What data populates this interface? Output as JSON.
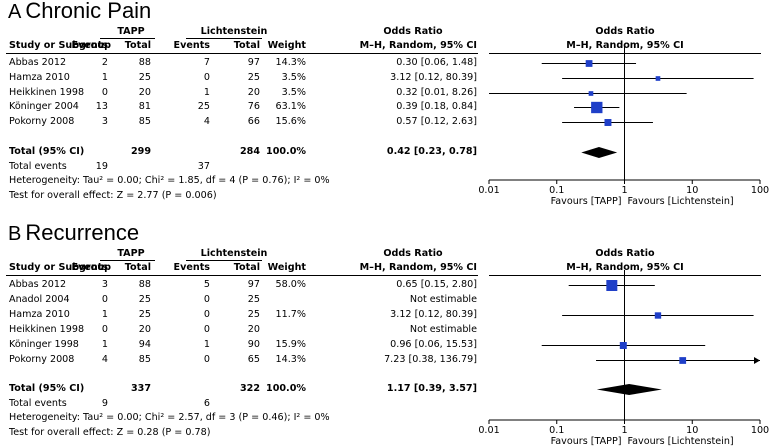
{
  "panels": [
    {
      "letter": "A",
      "title": "Chronic Pain",
      "group1": "TAPP",
      "group2": "Lichtenstein",
      "col_headers": {
        "study": "Study or Subgroup",
        "events1": "Events",
        "total1": "Total",
        "events2": "Events",
        "total2": "Total",
        "weight": "Weight",
        "or_title": "Odds Ratio",
        "or_method": "M–H, Random, 95% CI",
        "plot_title": "Odds Ratio",
        "plot_method": "M–H, Random, 95% CI"
      },
      "studies": [
        {
          "name": "Abbas 2012",
          "e1": "2",
          "t1": "88",
          "e2": "7",
          "t2": "97",
          "weight": "14.3%",
          "ci_text": "0.30 [0.06, 1.48]",
          "or": 0.3,
          "lo": 0.06,
          "hi": 1.48,
          "w": 14.3
        },
        {
          "name": "Hamza 2010",
          "e1": "1",
          "t1": "25",
          "e2": "0",
          "t2": "25",
          "weight": "3.5%",
          "ci_text": "3.12 [0.12, 80.39]",
          "or": 3.12,
          "lo": 0.12,
          "hi": 80.39,
          "w": 3.5
        },
        {
          "name": "Heikkinen 1998",
          "e1": "0",
          "t1": "20",
          "e2": "1",
          "t2": "20",
          "weight": "3.5%",
          "ci_text": "0.32 [0.01, 8.26]",
          "or": 0.32,
          "lo": 0.01,
          "hi": 8.26,
          "w": 3.5
        },
        {
          "name": "Köninger 2004",
          "e1": "13",
          "t1": "81",
          "e2": "25",
          "t2": "76",
          "weight": "63.1%",
          "ci_text": "0.39 [0.18, 0.84]",
          "or": 0.39,
          "lo": 0.18,
          "hi": 0.84,
          "w": 63.1
        },
        {
          "name": "Pokorny 2008",
          "e1": "3",
          "t1": "85",
          "e2": "4",
          "t2": "66",
          "weight": "15.6%",
          "ci_text": "0.57 [0.12, 2.63]",
          "or": 0.57,
          "lo": 0.12,
          "hi": 2.63,
          "w": 15.6
        }
      ],
      "total": {
        "label": "Total (95% CI)",
        "t1": "299",
        "t2": "284",
        "weight": "100.0%",
        "ci_text": "0.42 [0.23, 0.78]",
        "or": 0.42,
        "lo": 0.23,
        "hi": 0.78
      },
      "total_events": {
        "label": "Total events",
        "e1": "19",
        "e2": "37"
      },
      "heterogeneity": "Heterogeneity: Tau² = 0.00; Chi² = 1.85, df = 4 (P = 0.76); I² = 0%",
      "overall": "Test for overall effect: Z = 2.77 (P = 0.006)",
      "axis": {
        "ticks": [
          "0.01",
          "0.1",
          "1",
          "10",
          "100"
        ],
        "favours_left": "Favours [TAPP]",
        "favours_right": "Favours [Lichtenstein]"
      }
    },
    {
      "letter": "B",
      "title": "Recurrence",
      "group1": "TAPP",
      "group2": "Lichtenstein",
      "col_headers": {
        "study": "Study or Subgroup",
        "events1": "Events",
        "total1": "Total",
        "events2": "Events",
        "total2": "Total",
        "weight": "Weight",
        "or_title": "Odds Ratio",
        "or_method": "M–H, Random, 95% CI",
        "plot_title": "Odds Ratio",
        "plot_method": "M–H, Random, 95% CI"
      },
      "studies": [
        {
          "name": "Abbas 2012",
          "e1": "3",
          "t1": "88",
          "e2": "5",
          "t2": "97",
          "weight": "58.0%",
          "ci_text": "0.65 [0.15, 2.80]",
          "or": 0.65,
          "lo": 0.15,
          "hi": 2.8,
          "w": 58.0
        },
        {
          "name": "Anadol 2004",
          "e1": "0",
          "t1": "25",
          "e2": "0",
          "t2": "25",
          "weight": "",
          "ci_text": "Not estimable",
          "or": null,
          "lo": null,
          "hi": null,
          "w": 0
        },
        {
          "name": "Hamza 2010",
          "e1": "1",
          "t1": "25",
          "e2": "0",
          "t2": "25",
          "weight": "11.7%",
          "ci_text": "3.12 [0.12, 80.39]",
          "or": 3.12,
          "lo": 0.12,
          "hi": 80.39,
          "w": 11.7
        },
        {
          "name": "Heikkinen 1998",
          "e1": "0",
          "t1": "20",
          "e2": "0",
          "t2": "20",
          "weight": "",
          "ci_text": "Not estimable",
          "or": null,
          "lo": null,
          "hi": null,
          "w": 0
        },
        {
          "name": "Köninger 1998",
          "e1": "1",
          "t1": "94",
          "e2": "1",
          "t2": "90",
          "weight": "15.9%",
          "ci_text": "0.96 [0.06, 15.53]",
          "or": 0.96,
          "lo": 0.06,
          "hi": 15.53,
          "w": 15.9
        },
        {
          "name": "Pokorny 2008",
          "e1": "4",
          "t1": "85",
          "e2": "0",
          "t2": "65",
          "weight": "14.3%",
          "ci_text": "7.23 [0.38, 136.79]",
          "or": 7.23,
          "lo": 0.38,
          "hi": 136.79,
          "w": 14.3
        }
      ],
      "total": {
        "label": "Total (95% CI)",
        "t1": "337",
        "t2": "322",
        "weight": "100.0%",
        "ci_text": "1.17 [0.39, 3.57]",
        "or": 1.17,
        "lo": 0.39,
        "hi": 3.57
      },
      "total_events": {
        "label": "Total events",
        "e1": "9",
        "e2": "6"
      },
      "heterogeneity": "Heterogeneity: Tau² = 0.00; Chi² = 2.57, df = 3 (P = 0.46); I² = 0%",
      "overall": "Test for overall effect: Z = 0.28 (P = 0.78)",
      "axis": {
        "ticks": [
          "0.01",
          "0.1",
          "1",
          "10",
          "100"
        ],
        "favours_left": "Favours [TAPP]",
        "favours_right": "Favours [Lichtenstein]"
      }
    }
  ],
  "chart_data": [
    {
      "type": "forest",
      "title": "Chronic Pain",
      "scale": "log",
      "xlim": [
        0.01,
        100
      ],
      "xticks": [
        0.01,
        0.1,
        1,
        10,
        100
      ],
      "categories": [
        "Abbas 2012",
        "Hamza 2010",
        "Heikkinen 1998",
        "Köninger 2004",
        "Pokorny 2008",
        "Total (95% CI)"
      ],
      "odds_ratio": [
        0.3,
        3.12,
        0.32,
        0.39,
        0.57,
        0.42
      ],
      "ci_low": [
        0.06,
        0.12,
        0.01,
        0.18,
        0.12,
        0.23
      ],
      "ci_high": [
        1.48,
        80.39,
        8.26,
        0.84,
        2.63,
        0.78
      ],
      "weight": [
        14.3,
        3.5,
        3.5,
        63.1,
        15.6,
        100.0
      ]
    },
    {
      "type": "forest",
      "title": "Recurrence",
      "scale": "log",
      "xlim": [
        0.01,
        100
      ],
      "xticks": [
        0.01,
        0.1,
        1,
        10,
        100
      ],
      "categories": [
        "Abbas 2012",
        "Anadol 2004",
        "Hamza 2010",
        "Heikkinen 1998",
        "Köninger 1998",
        "Pokorny 2008",
        "Total (95% CI)"
      ],
      "odds_ratio": [
        0.65,
        null,
        3.12,
        null,
        0.96,
        7.23,
        1.17
      ],
      "ci_low": [
        0.15,
        null,
        0.12,
        null,
        0.06,
        0.38,
        0.39
      ],
      "ci_high": [
        2.8,
        null,
        80.39,
        null,
        15.53,
        136.79,
        3.57
      ],
      "weight": [
        58.0,
        null,
        11.7,
        null,
        15.9,
        14.3,
        100.0
      ]
    }
  ],
  "colors": {
    "marker": "#1f3fc8",
    "line": "#000000"
  }
}
